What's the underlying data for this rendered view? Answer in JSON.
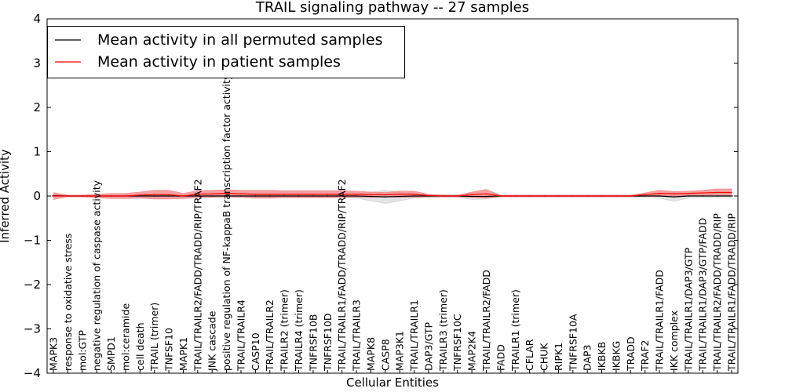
{
  "chart_data": {
    "type": "line",
    "title": "TRAIL signaling pathway -- 27 samples",
    "xlabel": "Cellular Entities",
    "ylabel": "Inferred Activity",
    "ylim": [
      -4,
      4
    ],
    "yticks": [
      -4,
      -3,
      -2,
      -1,
      0,
      1,
      2,
      3,
      4
    ],
    "ytick_labels": [
      "−4",
      "−3",
      "−2",
      "−1",
      "0",
      "1",
      "2",
      "3",
      "4"
    ],
    "legend_position": "top-left",
    "categories": [
      "MAPK3",
      "response to oxidative stress",
      "mol:GTP",
      "negative regulation of caspase activity",
      "SMPD1",
      "mol:ceramide",
      "cell death",
      "TRAIL (trimer)",
      "TNFSF10",
      "MAPK1",
      "TRAIL/TRAILR2/FADD/TRADD/RIP/TRAF2",
      "JNK cascade",
      "positive regulation of NF-kappaB transcription factor activity",
      "TRAIL/TRAILR4",
      "CASP10",
      "TRAIL/TRAILR2",
      "TRAILR2 (trimer)",
      "TRAILR4 (trimer)",
      "TNFRSF10B",
      "TNFRSF10D",
      "TRAIL/TRAILR1/FADD/TRADD/RIP/TRAF2",
      "TRAIL/TRAILR3",
      "MAPK8",
      "CASP8",
      "MAP3K1",
      "TRAIL/TRAILR1",
      "DAP3/GTP",
      "TRAILR3 (trimer)",
      "TNFRSF10C",
      "MAP2K4",
      "TRAIL/TRAILR2/FADD",
      "FADD",
      "TRAILR1 (trimer)",
      "CFLAR",
      "CHUK",
      "RIPK1",
      "TNFRSF10A",
      "DAP3",
      "IKBKB",
      "IKBKG",
      "TRADD",
      "TRAF2",
      "TRAIL/TRAILR1/FADD",
      "IKK complex",
      "TRAIL/TRAILR1/DAP3/GTP",
      "TRAIL/TRAILR1/DAP3/GTP/FADD",
      "TRAIL/TRAILR2/FADD/TRADD/RIP",
      "TRAIL/TRAILR1/FADD/TRADD/RIP"
    ],
    "series": [
      {
        "name": "Mean activity in all permuted samples",
        "color": "#000000",
        "band_color": "#cccccc",
        "values": [
          0.01,
          0.0,
          0.0,
          0.0,
          0.0,
          0.0,
          0.0,
          0.0,
          0.0,
          0.0,
          0.0,
          0.0,
          0.0,
          0.0,
          0.0,
          0.0,
          0.0,
          0.0,
          0.0,
          0.0,
          0.0,
          0.0,
          -0.01,
          -0.02,
          -0.01,
          0.0,
          0.0,
          0.0,
          0.0,
          -0.01,
          -0.01,
          0.0,
          0.0,
          0.0,
          0.0,
          0.0,
          0.0,
          0.0,
          0.0,
          0.0,
          0.0,
          0.0,
          0.0,
          -0.02,
          0.0,
          0.0,
          0.0,
          0.0
        ],
        "band": [
          0.02,
          0.02,
          0.02,
          0.02,
          0.02,
          0.02,
          0.02,
          0.02,
          0.02,
          0.02,
          0.02,
          0.03,
          0.03,
          0.03,
          0.03,
          0.03,
          0.03,
          0.03,
          0.03,
          0.03,
          0.03,
          0.05,
          0.1,
          0.15,
          0.1,
          0.05,
          0.03,
          0.03,
          0.03,
          0.07,
          0.06,
          0.02,
          0.02,
          0.02,
          0.02,
          0.02,
          0.02,
          0.02,
          0.02,
          0.02,
          0.02,
          0.03,
          0.05,
          0.1,
          0.05,
          0.04,
          0.04,
          0.04
        ]
      },
      {
        "name": "Mean activity in patient samples",
        "color": "#ff0000",
        "band_color": "#f08080",
        "values": [
          0.0,
          0.0,
          0.0,
          0.0,
          0.0,
          0.0,
          0.02,
          0.03,
          0.03,
          0.0,
          0.04,
          0.05,
          0.06,
          0.05,
          0.04,
          0.04,
          0.04,
          0.04,
          0.04,
          0.04,
          0.04,
          0.04,
          0.03,
          0.03,
          0.04,
          0.04,
          0.01,
          0.0,
          0.0,
          0.03,
          0.05,
          0.0,
          0.0,
          0.0,
          0.0,
          0.0,
          0.0,
          0.0,
          0.0,
          0.0,
          0.0,
          0.03,
          0.06,
          0.05,
          0.06,
          0.07,
          0.08,
          0.08
        ],
        "band": [
          0.08,
          0.02,
          0.02,
          0.04,
          0.06,
          0.06,
          0.07,
          0.1,
          0.1,
          0.06,
          0.08,
          0.08,
          0.08,
          0.08,
          0.09,
          0.09,
          0.08,
          0.08,
          0.08,
          0.08,
          0.08,
          0.07,
          0.06,
          0.05,
          0.07,
          0.07,
          0.03,
          0.02,
          0.02,
          0.06,
          0.1,
          0.02,
          0.02,
          0.02,
          0.02,
          0.02,
          0.02,
          0.02,
          0.02,
          0.02,
          0.02,
          0.04,
          0.07,
          0.05,
          0.05,
          0.06,
          0.08,
          0.08
        ]
      }
    ]
  }
}
